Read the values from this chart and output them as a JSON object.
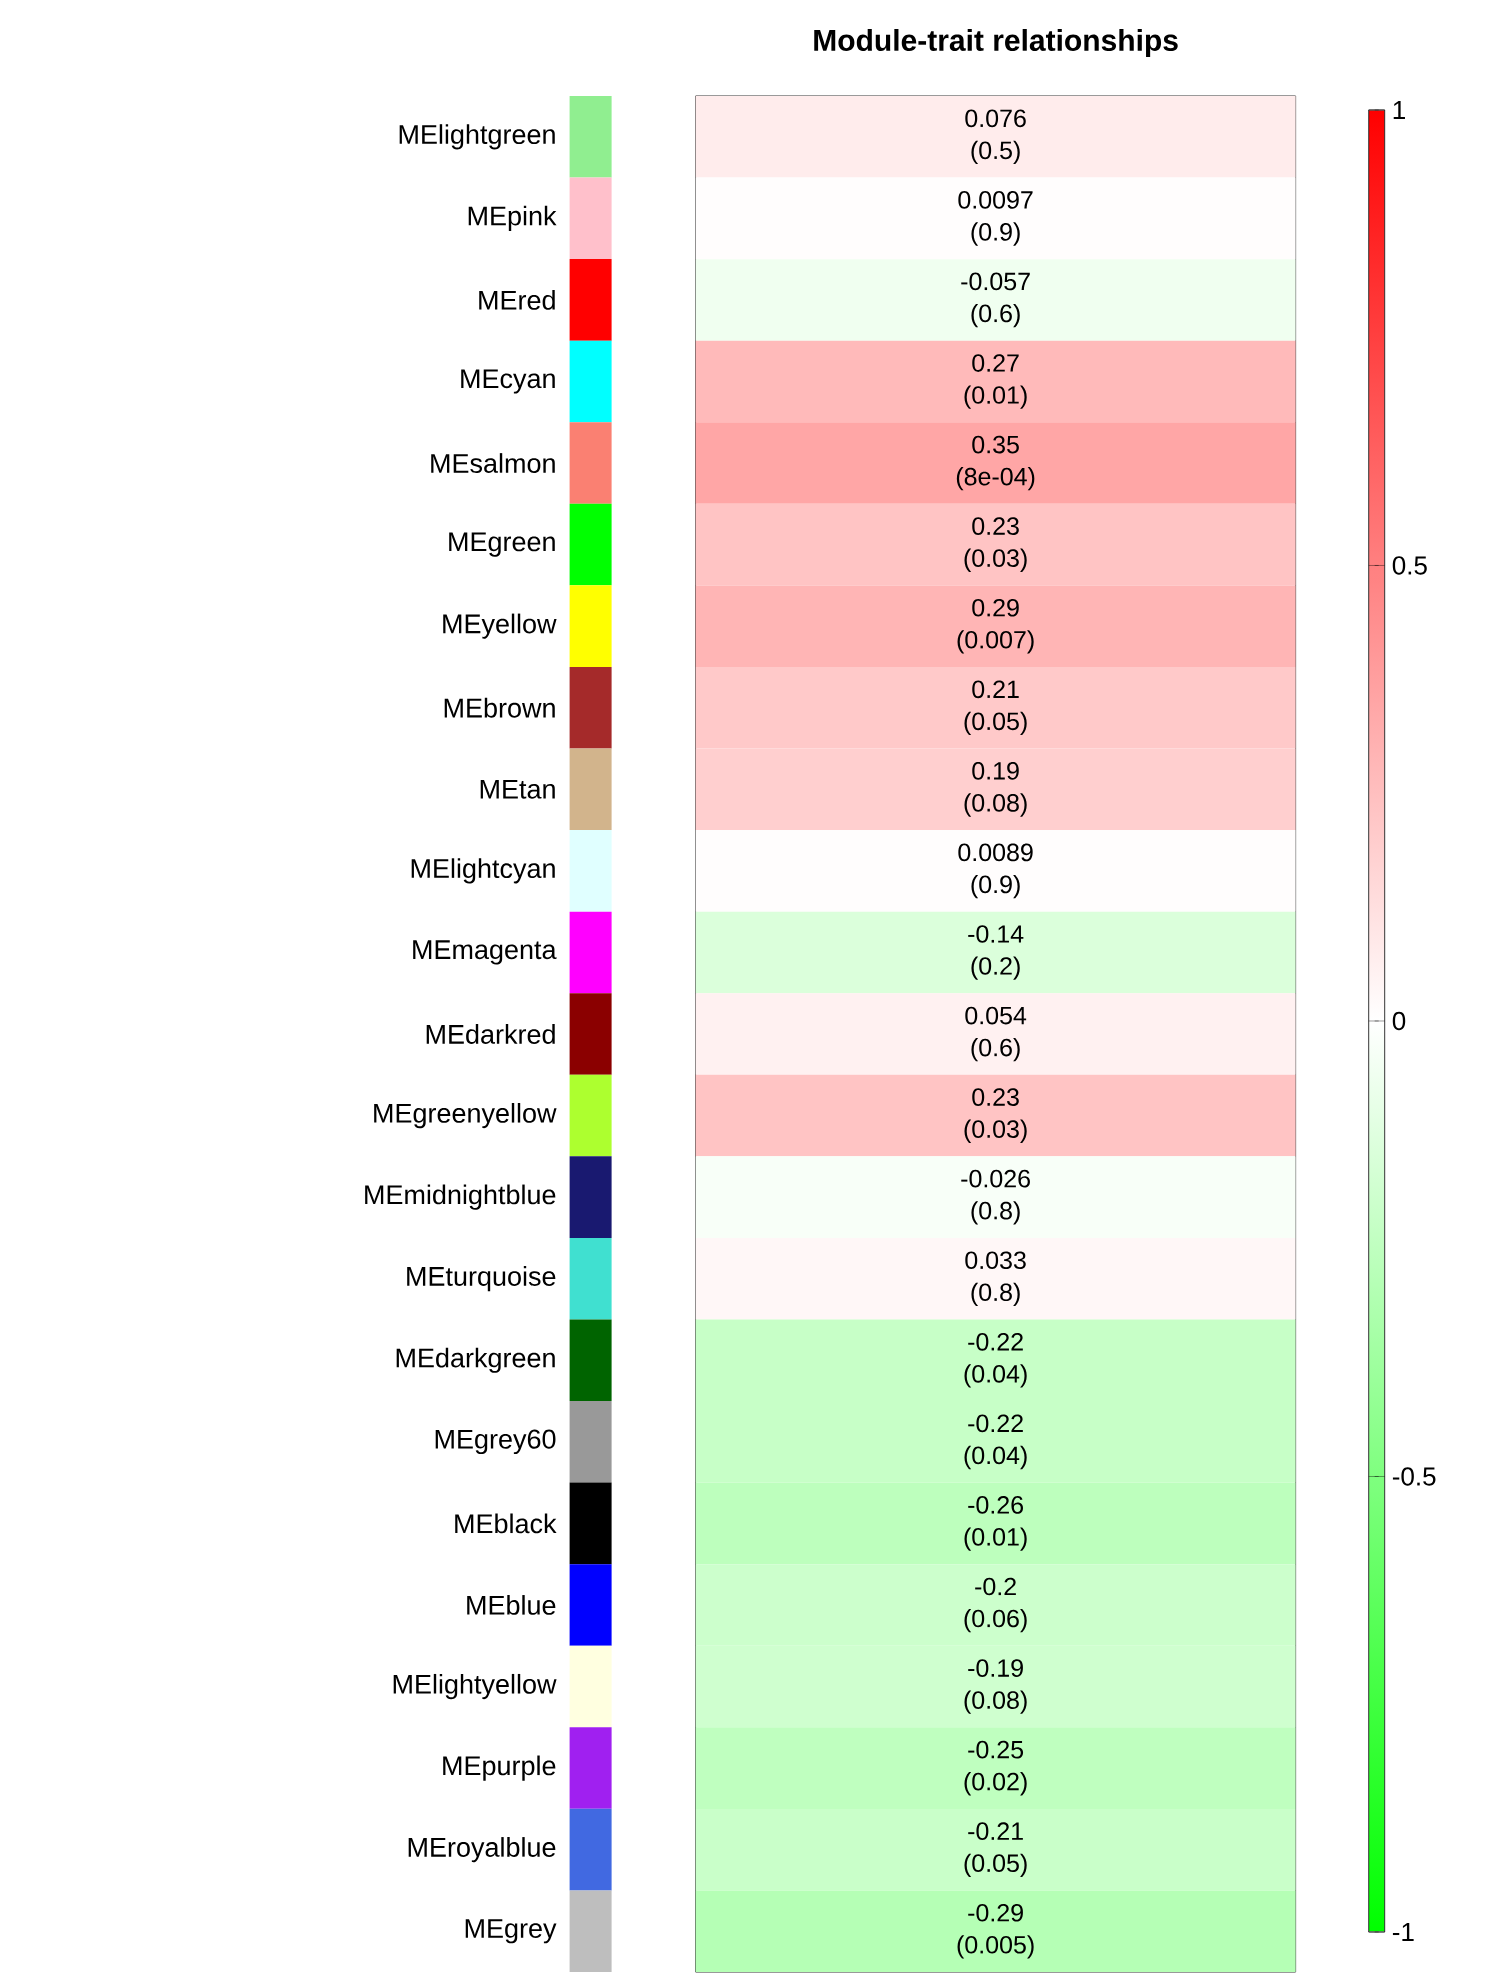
{
  "chart_data": {
    "type": "heatmap",
    "title": "Module-trait relationships",
    "categories": [
      null
    ],
    "y_categories": [
      "MElightgreen",
      "MEpink",
      "MEred",
      "MEcyan",
      "MEsalmon",
      "MEgreen",
      "MEyellow",
      "MEbrown",
      "MEtan",
      "MElightcyan",
      "MEmagenta",
      "MEdarkred",
      "MEgreenyellow",
      "MEmidnightblue",
      "MEturquoise",
      "MEdarkgreen",
      "MEgrey60",
      "MEblack",
      "MEblue",
      "MElightyellow",
      "MEpurple",
      "MEroyalblue",
      "MEgrey"
    ],
    "colors": [
      "#90ee90",
      "#ffc0cb",
      "#ff0000",
      "#00ffff",
      "#fa8072",
      "#00ff00",
      "#ffff00",
      "#a52a2a",
      "#d2b48c",
      "#e0ffff",
      "#ff00ff",
      "#8b0000",
      "#adff2f",
      "#191970",
      "#40e0d0",
      "#006400",
      "#999999",
      "#000000",
      "#0000ff",
      "#ffffe0",
      "#a020f0",
      "#4169e1",
      "#bebebe"
    ],
    "cells": [
      [
        0.076
      ],
      [
        0.0097
      ],
      [
        -0.057
      ],
      [
        0.27
      ],
      [
        0.35
      ],
      [
        0.23
      ],
      [
        0.29
      ],
      [
        0.21
      ],
      [
        0.19
      ],
      [
        0.0089
      ],
      [
        -0.14
      ],
      [
        0.054
      ],
      [
        0.23
      ],
      [
        -0.026
      ],
      [
        0.033
      ],
      [
        -0.22
      ],
      [
        -0.22
      ],
      [
        -0.26
      ],
      [
        -0.2
      ],
      [
        -0.19
      ],
      [
        -0.25
      ],
      [
        -0.21
      ],
      [
        -0.29
      ]
    ],
    "cell_labels": [
      [
        "0.076 (0.5)"
      ],
      [
        "0.0097 (0.9)"
      ],
      [
        "-0.057 (0.6)"
      ],
      [
        "0.27 (0.01)"
      ],
      [
        "0.35 (8e-04)"
      ],
      [
        "0.23 (0.03)"
      ],
      [
        "0.29 (0.007)"
      ],
      [
        "0.21 (0.05)"
      ],
      [
        "0.19 (0.08)"
      ],
      [
        "0.0089 (0.9)"
      ],
      [
        "-0.14 (0.2)"
      ],
      [
        "0.054 (0.6)"
      ],
      [
        "0.23 (0.03)"
      ],
      [
        "-0.026 (0.8)"
      ],
      [
        "0.033 (0.8)"
      ],
      [
        "-0.22 (0.04)"
      ],
      [
        "-0.22 (0.04)"
      ],
      [
        "-0.26 (0.01)"
      ],
      [
        "-0.2 (0.06)"
      ],
      [
        "-0.19 (0.08)"
      ],
      [
        "-0.25 (0.02)"
      ],
      [
        "-0.21 (0.05)"
      ],
      [
        "-0.29 (0.005)"
      ]
    ],
    "clim": [
      -1,
      1
    ],
    "cticks": [
      -1,
      -0.5,
      0,
      0.5,
      1
    ]
  }
}
